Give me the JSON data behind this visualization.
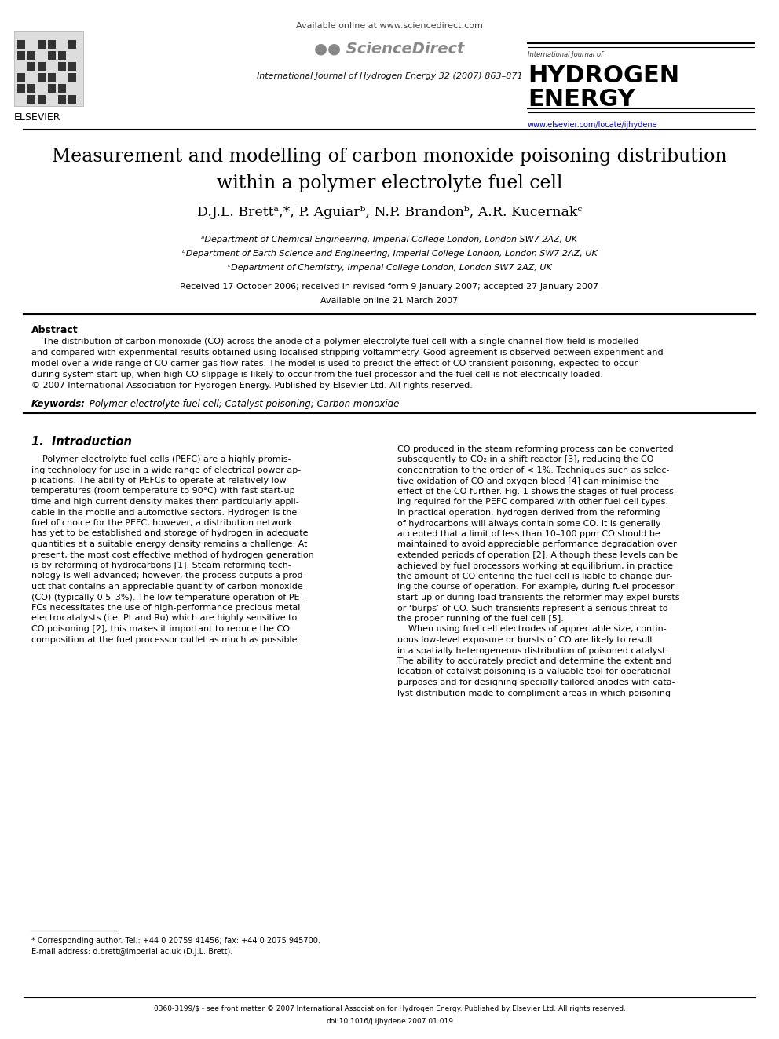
{
  "figsize": [
    9.92,
    13.23
  ],
  "dpi": 100,
  "bg_color": "#ffffff",
  "header_available_text": "Available online at www.sciencedirect.com",
  "header_journal_line1": "International Journal of Hydrogen Energy 32 (2007) 863–871",
  "header_url": "www.elsevier.com/locate/ijhydene",
  "header_journal_bold1": "HYDROGEN",
  "header_journal_bold2": "ENERGY",
  "header_journal_small": "International Journal of",
  "elsevier_text": "ELSEVIER",
  "title_line1": "Measurement and modelling of carbon monoxide poisoning distribution",
  "title_line2": "within a polymer electrolyte fuel cell",
  "affil_a": "ᵃDepartment of Chemical Engineering, Imperial College London, London SW7 2AZ, UK",
  "affil_b": "ᵇDepartment of Earth Science and Engineering, Imperial College London, London SW7 2AZ, UK",
  "affil_c": "ᶜDepartment of Chemistry, Imperial College London, London SW7 2AZ, UK",
  "received_text": "Received 17 October 2006; received in revised form 9 January 2007; accepted 27 January 2007",
  "available_text": "Available online 21 March 2007",
  "abstract_title": "Abstract",
  "keywords_label": "Keywords:",
  "keywords_text": " Polymer electrolyte fuel cell; Catalyst poisoning; Carbon monoxide",
  "section1_title": "1.  Introduction",
  "footnote_star": "* Corresponding author. Tel.: +44 0 20759 41456; fax: +44 0 2075 945700.",
  "footnote_email": "E-mail address: d.brett@imperial.ac.uk (D.J.L. Brett).",
  "bottom_line1": "0360-3199/$ - see front matter © 2007 International Association for Hydrogen Energy. Published by Elsevier Ltd. All rights reserved.",
  "bottom_line2": "doi:10.1016/j.ijhydene.2007.01.019"
}
